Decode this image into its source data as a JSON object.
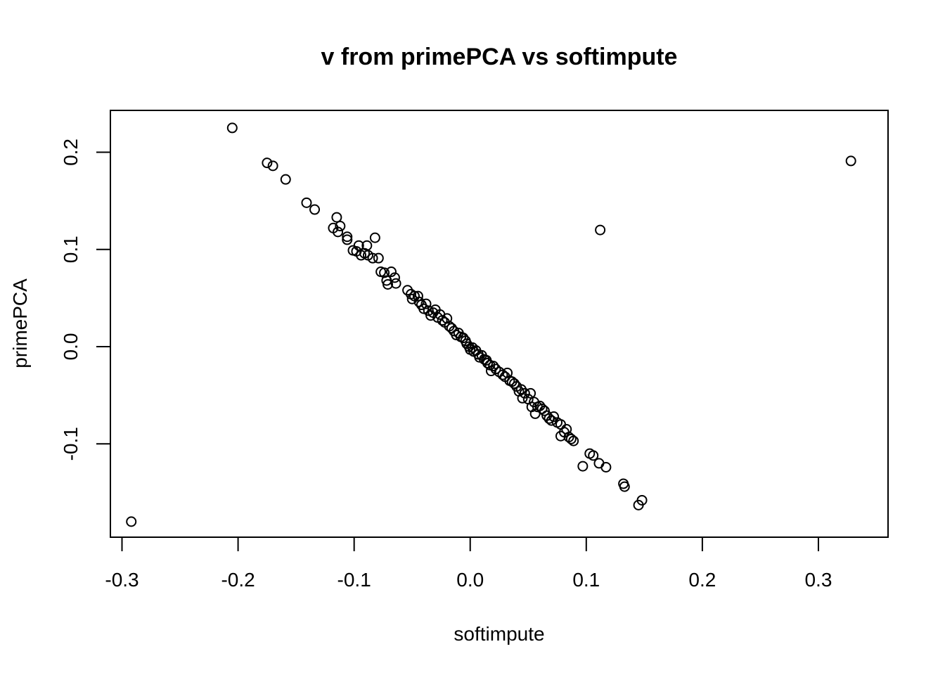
{
  "chart_data": {
    "type": "scatter",
    "title": "v from primePCA vs softimpute",
    "xlabel": "softimpute",
    "ylabel": "primePCA",
    "xlim": [
      -0.31,
      0.36
    ],
    "ylim": [
      -0.196,
      0.243
    ],
    "x_ticks": [
      -0.3,
      -0.2,
      -0.1,
      0.0,
      0.1,
      0.2,
      0.3
    ],
    "x_tick_labels": [
      "-0.3",
      "-0.2",
      "-0.1",
      "0.0",
      "0.1",
      "0.2",
      "0.3"
    ],
    "y_ticks": [
      -0.1,
      0.0,
      0.1,
      0.2
    ],
    "y_tick_labels": [
      "-0.1",
      "0.0",
      "0.1",
      "0.2"
    ],
    "grid": false,
    "legend": "none",
    "marker": "open-circle",
    "color": "#000000",
    "points": [
      [
        -0.292,
        -0.18
      ],
      [
        -0.205,
        0.225
      ],
      [
        -0.175,
        0.189
      ],
      [
        -0.17,
        0.186
      ],
      [
        -0.159,
        0.172
      ],
      [
        -0.141,
        0.148
      ],
      [
        -0.134,
        0.141
      ],
      [
        -0.118,
        0.122
      ],
      [
        -0.115,
        0.133
      ],
      [
        -0.114,
        0.118
      ],
      [
        -0.112,
        0.124
      ],
      [
        -0.106,
        0.113
      ],
      [
        -0.106,
        0.11
      ],
      [
        -0.101,
        0.099
      ],
      [
        -0.098,
        0.098
      ],
      [
        -0.096,
        0.104
      ],
      [
        -0.094,
        0.094
      ],
      [
        -0.091,
        0.096
      ],
      [
        -0.089,
        0.104
      ],
      [
        -0.088,
        0.094
      ],
      [
        -0.084,
        0.091
      ],
      [
        -0.082,
        0.112
      ],
      [
        -0.079,
        0.091
      ],
      [
        -0.077,
        0.077
      ],
      [
        -0.074,
        0.076
      ],
      [
        -0.072,
        0.068
      ],
      [
        -0.071,
        0.064
      ],
      [
        -0.068,
        0.077
      ],
      [
        -0.065,
        0.071
      ],
      [
        -0.064,
        0.065
      ],
      [
        -0.054,
        0.058
      ],
      [
        -0.051,
        0.054
      ],
      [
        -0.05,
        0.049
      ],
      [
        -0.048,
        0.052
      ],
      [
        -0.045,
        0.052
      ],
      [
        -0.044,
        0.046
      ],
      [
        -0.042,
        0.043
      ],
      [
        -0.04,
        0.039
      ],
      [
        -0.038,
        0.044
      ],
      [
        -0.036,
        0.037
      ],
      [
        -0.034,
        0.032
      ],
      [
        -0.032,
        0.035
      ],
      [
        -0.03,
        0.038
      ],
      [
        -0.028,
        0.03
      ],
      [
        -0.026,
        0.033
      ],
      [
        -0.024,
        0.027
      ],
      [
        -0.022,
        0.025
      ],
      [
        -0.02,
        0.029
      ],
      [
        -0.018,
        0.021
      ],
      [
        -0.016,
        0.019
      ],
      [
        -0.014,
        0.016
      ],
      [
        -0.012,
        0.012
      ],
      [
        -0.01,
        0.014
      ],
      [
        -0.008,
        0.01
      ],
      [
        -0.006,
        0.009
      ],
      [
        -0.004,
        0.006
      ],
      [
        -0.003,
        0.003
      ],
      [
        -0.001,
        0.0
      ],
      [
        0.0,
        -0.003
      ],
      [
        0.002,
        -0.001
      ],
      [
        0.003,
        -0.005
      ],
      [
        0.005,
        -0.004
      ],
      [
        0.007,
        -0.008
      ],
      [
        0.008,
        -0.011
      ],
      [
        0.01,
        -0.009
      ],
      [
        0.012,
        -0.013
      ],
      [
        0.014,
        -0.014
      ],
      [
        0.015,
        -0.017
      ],
      [
        0.017,
        -0.019
      ],
      [
        0.018,
        -0.025
      ],
      [
        0.02,
        -0.02
      ],
      [
        0.022,
        -0.023
      ],
      [
        0.025,
        -0.026
      ],
      [
        0.028,
        -0.029
      ],
      [
        0.03,
        -0.031
      ],
      [
        0.032,
        -0.027
      ],
      [
        0.034,
        -0.035
      ],
      [
        0.036,
        -0.036
      ],
      [
        0.038,
        -0.038
      ],
      [
        0.04,
        -0.041
      ],
      [
        0.042,
        -0.046
      ],
      [
        0.044,
        -0.044
      ],
      [
        0.045,
        -0.053
      ],
      [
        0.047,
        -0.048
      ],
      [
        0.05,
        -0.054
      ],
      [
        0.052,
        -0.048
      ],
      [
        0.053,
        -0.062
      ],
      [
        0.055,
        -0.057
      ],
      [
        0.056,
        -0.069
      ],
      [
        0.058,
        -0.062
      ],
      [
        0.06,
        -0.061
      ],
      [
        0.062,
        -0.064
      ],
      [
        0.064,
        -0.066
      ],
      [
        0.066,
        -0.071
      ],
      [
        0.068,
        -0.074
      ],
      [
        0.07,
        -0.076
      ],
      [
        0.072,
        -0.072
      ],
      [
        0.075,
        -0.078
      ],
      [
        0.078,
        -0.08
      ],
      [
        0.078,
        -0.092
      ],
      [
        0.081,
        -0.088
      ],
      [
        0.083,
        -0.085
      ],
      [
        0.085,
        -0.093
      ],
      [
        0.087,
        -0.095
      ],
      [
        0.089,
        -0.097
      ],
      [
        0.097,
        -0.123
      ],
      [
        0.103,
        -0.11
      ],
      [
        0.106,
        -0.112
      ],
      [
        0.111,
        -0.12
      ],
      [
        0.112,
        0.12
      ],
      [
        0.117,
        -0.124
      ],
      [
        0.132,
        -0.141
      ],
      [
        0.133,
        -0.144
      ],
      [
        0.145,
        -0.163
      ],
      [
        0.148,
        -0.158
      ],
      [
        0.328,
        0.191
      ]
    ]
  }
}
